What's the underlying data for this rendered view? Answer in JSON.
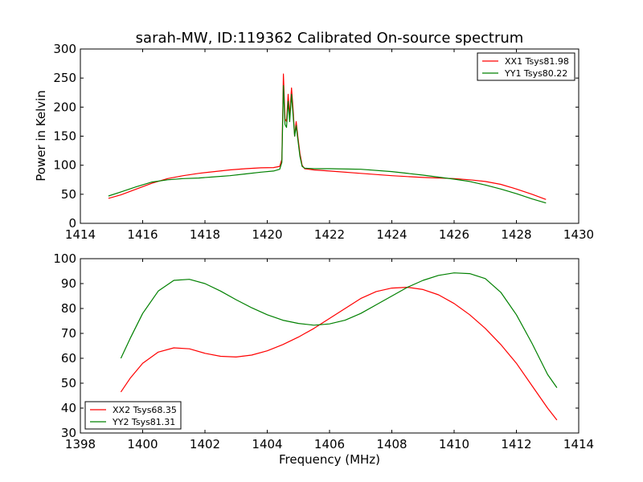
{
  "figure": {
    "title": "sarah-MW, ID:119362 Calibrated On-source spectrum"
  },
  "chart_data": [
    {
      "type": "line",
      "title": "sarah-MW, ID:119362 Calibrated On-source spectrum",
      "xlabel": "",
      "ylabel": "Power in Kelvin",
      "xlim": [
        1414,
        1430
      ],
      "ylim": [
        0,
        300
      ],
      "xticks": [
        1414,
        1416,
        1418,
        1420,
        1422,
        1424,
        1426,
        1428,
        1430
      ],
      "yticks": [
        0,
        50,
        100,
        150,
        200,
        250,
        300
      ],
      "grid": false,
      "legend_position": "top-right",
      "series": [
        {
          "name": "XX1 Tsys81.98",
          "color": "#ff0000",
          "points": [
            [
              1414.9,
              43
            ],
            [
              1415.3,
              49
            ],
            [
              1415.8,
              59
            ],
            [
              1416.3,
              69
            ],
            [
              1416.8,
              77
            ],
            [
              1417.3,
              82
            ],
            [
              1417.8,
              86
            ],
            [
              1418.3,
              89
            ],
            [
              1418.8,
              92
            ],
            [
              1419.3,
              94
            ],
            [
              1419.8,
              95.5
            ],
            [
              1420.2,
              96
            ],
            [
              1420.4,
              98
            ],
            [
              1420.47,
              110
            ],
            [
              1420.52,
              257
            ],
            [
              1420.57,
              180
            ],
            [
              1420.62,
              175
            ],
            [
              1420.67,
              222
            ],
            [
              1420.72,
              185
            ],
            [
              1420.78,
              233
            ],
            [
              1420.83,
              195
            ],
            [
              1420.88,
              150
            ],
            [
              1420.93,
              175
            ],
            [
              1420.98,
              150
            ],
            [
              1421.05,
              120
            ],
            [
              1421.12,
              100
            ],
            [
              1421.2,
              94
            ],
            [
              1421.5,
              92
            ],
            [
              1422,
              90
            ],
            [
              1423,
              86
            ],
            [
              1424,
              82
            ],
            [
              1425,
              79
            ],
            [
              1426,
              77
            ],
            [
              1426.5,
              75
            ],
            [
              1427,
              72
            ],
            [
              1427.5,
              67
            ],
            [
              1428,
              59
            ],
            [
              1428.5,
              50
            ],
            [
              1428.95,
              41
            ]
          ]
        },
        {
          "name": "YY1 Tsys80.22",
          "color": "#008000",
          "points": [
            [
              1414.9,
              47
            ],
            [
              1415.3,
              54
            ],
            [
              1415.8,
              63
            ],
            [
              1416.3,
              71
            ],
            [
              1416.8,
              75
            ],
            [
              1417.3,
              77
            ],
            [
              1417.8,
              78
            ],
            [
              1418.3,
              80
            ],
            [
              1418.8,
              82
            ],
            [
              1419.3,
              85
            ],
            [
              1419.8,
              88
            ],
            [
              1420.2,
              90
            ],
            [
              1420.4,
              93
            ],
            [
              1420.47,
              105
            ],
            [
              1420.52,
              237
            ],
            [
              1420.57,
              170
            ],
            [
              1420.62,
              165
            ],
            [
              1420.67,
              210
            ],
            [
              1420.72,
              175
            ],
            [
              1420.78,
              222
            ],
            [
              1420.83,
              185
            ],
            [
              1420.88,
              150
            ],
            [
              1420.93,
              168
            ],
            [
              1420.98,
              145
            ],
            [
              1421.05,
              115
            ],
            [
              1421.12,
              98
            ],
            [
              1421.2,
              95
            ],
            [
              1421.5,
              94
            ],
            [
              1422,
              94
            ],
            [
              1423,
              93
            ],
            [
              1424,
              89
            ],
            [
              1425,
              83
            ],
            [
              1426,
              76
            ],
            [
              1426.5,
              72
            ],
            [
              1427,
              66
            ],
            [
              1427.5,
              59
            ],
            [
              1428,
              51
            ],
            [
              1428.5,
              42
            ],
            [
              1428.95,
              35
            ]
          ]
        }
      ]
    },
    {
      "type": "line",
      "title": "",
      "xlabel": "Frequency (MHz)",
      "ylabel": "",
      "xlim": [
        1398,
        1414
      ],
      "ylim": [
        30,
        100
      ],
      "xticks": [
        1398,
        1400,
        1402,
        1404,
        1406,
        1408,
        1410,
        1412,
        1414
      ],
      "yticks": [
        30,
        40,
        50,
        60,
        70,
        80,
        90,
        100
      ],
      "grid": false,
      "legend_position": "bottom-left",
      "series": [
        {
          "name": "XX2 Tsys68.35",
          "color": "#ff0000",
          "points": [
            [
              1399.3,
              46.5
            ],
            [
              1399.6,
              52
            ],
            [
              1400,
              58
            ],
            [
              1400.5,
              62.5
            ],
            [
              1401,
              64.2
            ],
            [
              1401.5,
              63.8
            ],
            [
              1402,
              62
            ],
            [
              1402.5,
              60.8
            ],
            [
              1403,
              60.5
            ],
            [
              1403.5,
              61.3
            ],
            [
              1404,
              63
            ],
            [
              1404.5,
              65.5
            ],
            [
              1405,
              68.5
            ],
            [
              1405.5,
              72
            ],
            [
              1406,
              76
            ],
            [
              1406.5,
              80
            ],
            [
              1407,
              84
            ],
            [
              1407.5,
              86.8
            ],
            [
              1408,
              88.2
            ],
            [
              1408.5,
              88.5
            ],
            [
              1409,
              87.6
            ],
            [
              1409.5,
              85.5
            ],
            [
              1410,
              82
            ],
            [
              1410.5,
              77.5
            ],
            [
              1411,
              72
            ],
            [
              1411.5,
              65.5
            ],
            [
              1412,
              58
            ],
            [
              1412.5,
              49
            ],
            [
              1413,
              40
            ],
            [
              1413.3,
              35.2
            ]
          ]
        },
        {
          "name": "YY2 Tsys81.31",
          "color": "#008000",
          "points": [
            [
              1399.3,
              60
            ],
            [
              1399.6,
              68
            ],
            [
              1400,
              78
            ],
            [
              1400.5,
              87
            ],
            [
              1401,
              91.3
            ],
            [
              1401.5,
              91.7
            ],
            [
              1402,
              90
            ],
            [
              1402.5,
              87
            ],
            [
              1403,
              83.5
            ],
            [
              1403.5,
              80.3
            ],
            [
              1404,
              77.5
            ],
            [
              1404.5,
              75.3
            ],
            [
              1405,
              74
            ],
            [
              1405.5,
              73.3
            ],
            [
              1406,
              73.8
            ],
            [
              1406.5,
              75.3
            ],
            [
              1407,
              78
            ],
            [
              1407.5,
              81.5
            ],
            [
              1408,
              85
            ],
            [
              1408.5,
              88.5
            ],
            [
              1409,
              91.3
            ],
            [
              1409.5,
              93.3
            ],
            [
              1410,
              94.3
            ],
            [
              1410.5,
              94
            ],
            [
              1411,
              92
            ],
            [
              1411.5,
              86.5
            ],
            [
              1412,
              77.5
            ],
            [
              1412.5,
              66
            ],
            [
              1413,
              53.5
            ],
            [
              1413.3,
              48.2
            ]
          ]
        }
      ]
    }
  ]
}
